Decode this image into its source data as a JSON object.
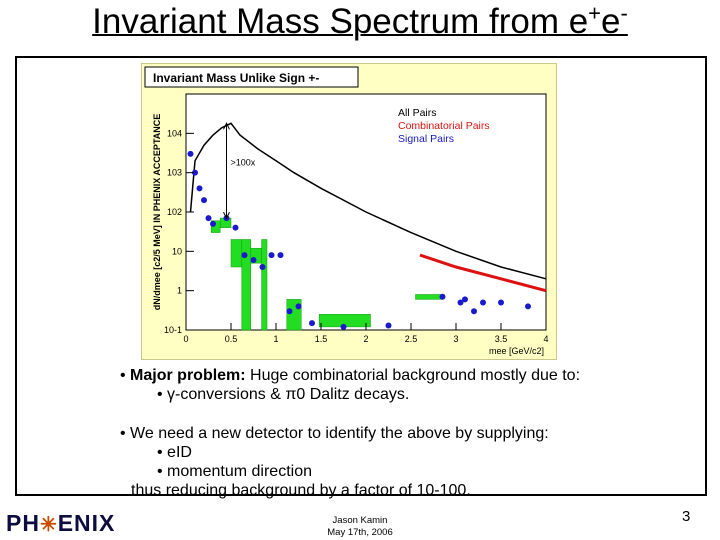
{
  "slide": {
    "title_main": "Invariant Mass Spectrum from e",
    "title_sup1": "+",
    "title_mid": "e",
    "title_sup2": "-",
    "page_number": "3",
    "footer_name": "Jason Kamin",
    "footer_date": "May 17th, 2006",
    "logo_left": "PH",
    "logo_right": "ENIX"
  },
  "bullets": {
    "b1_bold": "Major problem:",
    "b1_rest": " Huge combinatorial background mostly due to:",
    "b1_sub": "• γ-conversions & π0 Dalitz decays.",
    "b2": "• We need a new detector to identify the above by supplying:",
    "b2_sub1": "• eID",
    "b2_sub2": "• momentum direction",
    "b2_end": "thus reducing background by a factor of 10-100."
  },
  "colors": {
    "plot_bg": "#ffffc4",
    "all_pairs": "#000000",
    "combinatorial": "#dd1111",
    "signal": "#1a1acc",
    "error_box": "#22dd22"
  },
  "chart_data": {
    "type": "scatter",
    "title": "Invariant Mass Unlike Sign +-",
    "xlabel": "mee [GeV/c2]",
    "ylabel": "dN/dmee [c2/5 MeV] IN PHENIX ACCEPTANCE",
    "xlim": [
      0,
      4
    ],
    "ylim": [
      0.1,
      100000
    ],
    "y_log": true,
    "x_ticks": [
      "0",
      "0.5",
      "1",
      "1.5",
      "2",
      "2.5",
      "3",
      "3.5",
      "4"
    ],
    "y_ticks": [
      "10-1",
      "1",
      "10",
      "102",
      "103",
      "104"
    ],
    "legend": [
      "All Pairs",
      "Combinatorial Pairs",
      "Signal Pairs"
    ],
    "legend_position": "top-right",
    "annotation": ">100x",
    "all_pairs": {
      "x": [
        0.05,
        0.1,
        0.2,
        0.3,
        0.4,
        0.5,
        0.6,
        0.8,
        1.0,
        1.2,
        1.5,
        2.0,
        2.5,
        3.0,
        3.5,
        4.0
      ],
      "y": [
        100,
        2000,
        5000,
        9000,
        14000,
        18000,
        9000,
        4000,
        2000,
        1000,
        400,
        100,
        30,
        10,
        4,
        2
      ]
    },
    "combinatorial": {
      "x": [
        2.6,
        3.0,
        3.5,
        4.0
      ],
      "y": [
        8,
        4,
        2,
        1
      ]
    },
    "signal": {
      "x": [
        0.05,
        0.1,
        0.15,
        0.2,
        0.25,
        0.3,
        0.45,
        0.55,
        0.65,
        0.75,
        0.85,
        0.95,
        1.05,
        1.15,
        1.25,
        1.4,
        1.75,
        2.25,
        2.85,
        3.05,
        3.1,
        3.2,
        3.3,
        3.5,
        3.8
      ],
      "y": [
        3000,
        1000,
        400,
        200,
        70,
        50,
        70,
        40,
        8,
        6,
        4,
        8,
        8,
        0.3,
        0.4,
        0.15,
        0.12,
        0.13,
        0.7,
        0.5,
        0.6,
        0.3,
        0.5,
        0.5,
        0.4
      ]
    },
    "signal_error_boxes": [
      {
        "x": [
          0.28,
          0.38
        ],
        "y": [
          30,
          60
        ]
      },
      {
        "x": [
          0.38,
          0.5
        ],
        "y": [
          40,
          70
        ]
      },
      {
        "x": [
          0.5,
          0.62
        ],
        "y": [
          4,
          20
        ]
      },
      {
        "x": [
          0.62,
          0.72
        ],
        "y": [
          0.1,
          20
        ]
      },
      {
        "x": [
          0.72,
          0.84
        ],
        "y": [
          5,
          12
        ]
      },
      {
        "x": [
          0.84,
          0.9
        ],
        "y": [
          0.1,
          20
        ]
      },
      {
        "x": [
          1.12,
          1.28
        ],
        "y": [
          0.1,
          0.6
        ]
      },
      {
        "x": [
          1.48,
          2.05
        ],
        "y": [
          0.12,
          0.25
        ]
      },
      {
        "x": [
          2.55,
          2.85
        ],
        "y": [
          0.6,
          0.8
        ]
      }
    ]
  }
}
